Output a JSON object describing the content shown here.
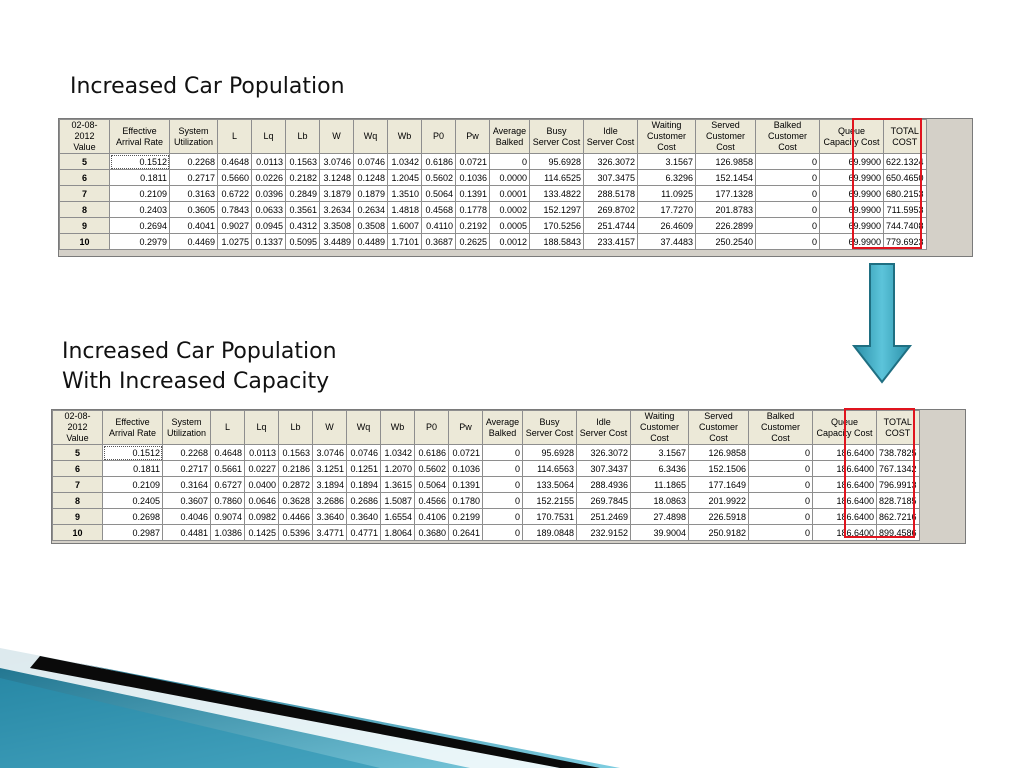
{
  "slide": {
    "heading_top": "Increased Car Population",
    "heading_bottom_line1": "Increased Car Population",
    "heading_bottom_line2": "With Increased Capacity"
  },
  "columns": [
    [
      "02-08-2012",
      "Value"
    ],
    [
      "Effective",
      "Arrival Rate"
    ],
    [
      "System",
      "Utilization"
    ],
    [
      "L",
      ""
    ],
    [
      "Lq",
      ""
    ],
    [
      "Lb",
      ""
    ],
    [
      "W",
      ""
    ],
    [
      "Wq",
      ""
    ],
    [
      "Wb",
      ""
    ],
    [
      "P0",
      ""
    ],
    [
      "Pw",
      ""
    ],
    [
      "Average",
      "Balked"
    ],
    [
      "Busy",
      "Server Cost"
    ],
    [
      "Idle",
      "Server Cost"
    ],
    [
      "Waiting",
      "Customer Cost"
    ],
    [
      "Served",
      "Customer Cost"
    ],
    [
      "Balked",
      "Customer Cost"
    ],
    [
      "Queue",
      "Capacity Cost"
    ],
    [
      "TOTAL",
      "COST"
    ]
  ],
  "table_top": {
    "rows": [
      [
        "5",
        "0.1512",
        "0.2268",
        "0.4648",
        "0.0113",
        "0.1563",
        "3.0746",
        "0.0746",
        "1.0342",
        "0.6186",
        "0.0721",
        "0",
        "95.6928",
        "326.3072",
        "3.1567",
        "126.9858",
        "0",
        "69.9900",
        "622.1324"
      ],
      [
        "6",
        "0.1811",
        "0.2717",
        "0.5660",
        "0.0226",
        "0.2182",
        "3.1248",
        "0.1248",
        "1.2045",
        "0.5602",
        "0.1036",
        "0.0000",
        "114.6525",
        "307.3475",
        "6.3296",
        "152.1454",
        "0",
        "69.9900",
        "650.4650"
      ],
      [
        "7",
        "0.2109",
        "0.3163",
        "0.6722",
        "0.0396",
        "0.2849",
        "3.1879",
        "0.1879",
        "1.3510",
        "0.5064",
        "0.1391",
        "0.0001",
        "133.4822",
        "288.5178",
        "11.0925",
        "177.1328",
        "0",
        "69.9900",
        "680.2153"
      ],
      [
        "8",
        "0.2403",
        "0.3605",
        "0.7843",
        "0.0633",
        "0.3561",
        "3.2634",
        "0.2634",
        "1.4818",
        "0.4568",
        "0.1778",
        "0.0002",
        "152.1297",
        "269.8702",
        "17.7270",
        "201.8783",
        "0",
        "69.9900",
        "711.5953"
      ],
      [
        "9",
        "0.2694",
        "0.4041",
        "0.9027",
        "0.0945",
        "0.4312",
        "3.3508",
        "0.3508",
        "1.6007",
        "0.4110",
        "0.2192",
        "0.0005",
        "170.5256",
        "251.4744",
        "26.4609",
        "226.2899",
        "0",
        "69.9900",
        "744.7408"
      ],
      [
        "10",
        "0.2979",
        "0.4469",
        "1.0275",
        "0.1337",
        "0.5095",
        "3.4489",
        "0.4489",
        "1.7101",
        "0.3687",
        "0.2625",
        "0.0012",
        "188.5843",
        "233.4157",
        "37.4483",
        "250.2540",
        "0",
        "69.9900",
        "779.6923"
      ]
    ]
  },
  "table_bottom": {
    "rows": [
      [
        "5",
        "0.1512",
        "0.2268",
        "0.4648",
        "0.0113",
        "0.1563",
        "3.0746",
        "0.0746",
        "1.0342",
        "0.6186",
        "0.0721",
        "0",
        "95.6928",
        "326.3072",
        "3.1567",
        "126.9858",
        "0",
        "186.6400",
        "738.7825"
      ],
      [
        "6",
        "0.1811",
        "0.2717",
        "0.5661",
        "0.0227",
        "0.2186",
        "3.1251",
        "0.1251",
        "1.2070",
        "0.5602",
        "0.1036",
        "0",
        "114.6563",
        "307.3437",
        "6.3436",
        "152.1506",
        "0",
        "186.6400",
        "767.1342"
      ],
      [
        "7",
        "0.2109",
        "0.3164",
        "0.6727",
        "0.0400",
        "0.2872",
        "3.1894",
        "0.1894",
        "1.3615",
        "0.5064",
        "0.1391",
        "0",
        "133.5064",
        "288.4936",
        "11.1865",
        "177.1649",
        "0",
        "186.6400",
        "796.9913"
      ],
      [
        "8",
        "0.2405",
        "0.3607",
        "0.7860",
        "0.0646",
        "0.3628",
        "3.2686",
        "0.2686",
        "1.5087",
        "0.4566",
        "0.1780",
        "0",
        "152.2155",
        "269.7845",
        "18.0863",
        "201.9922",
        "0",
        "186.6400",
        "828.7185"
      ],
      [
        "9",
        "0.2698",
        "0.4046",
        "0.9074",
        "0.0982",
        "0.4466",
        "3.3640",
        "0.3640",
        "1.6554",
        "0.4106",
        "0.2199",
        "0",
        "170.7531",
        "251.2469",
        "27.4898",
        "226.5918",
        "0",
        "186.6400",
        "862.7216"
      ],
      [
        "10",
        "0.2987",
        "0.4481",
        "1.0386",
        "0.1425",
        "0.5396",
        "3.4771",
        "0.4771",
        "1.8064",
        "0.3680",
        "0.2641",
        "0",
        "189.0848",
        "232.9152",
        "39.9004",
        "250.9182",
        "0",
        "186.6400",
        "899.4586"
      ]
    ]
  },
  "colors": {
    "highlight_box": "#e0141e",
    "arrow_fill": "#3aa6c0",
    "arrow_stroke": "#1f6f82",
    "header_bg": "#ece9d8",
    "grid_bg": "#d4d0c8"
  },
  "icons": {
    "arrow": "down-arrow-icon"
  }
}
